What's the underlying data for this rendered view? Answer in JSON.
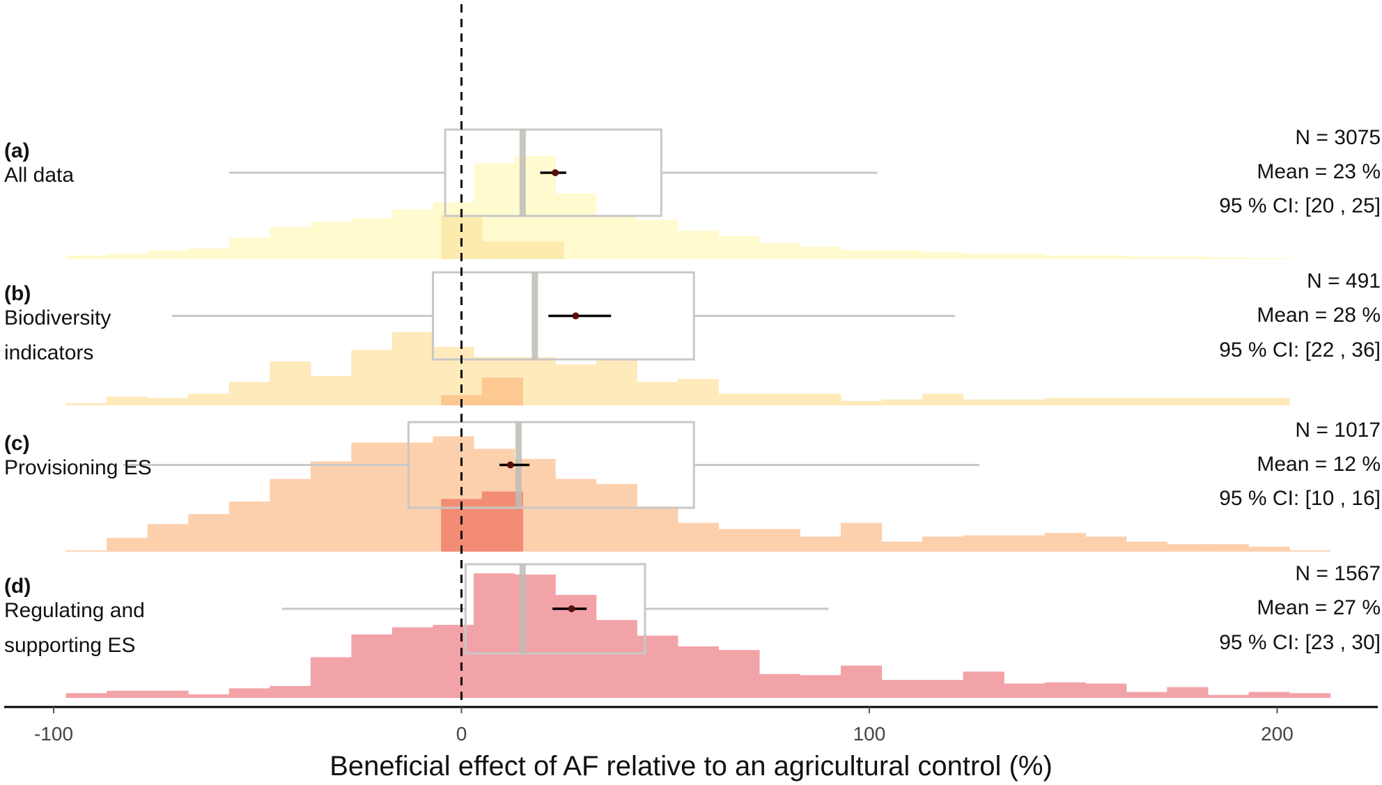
{
  "chart_data": {
    "type": "histogram",
    "title": "",
    "xlabel": "Beneficial effect of AF relative to an agricultural control (%)",
    "ylabel": "",
    "xlim": [
      -100,
      210
    ],
    "xticks": [
      -100,
      0,
      100,
      200
    ],
    "xtick_labels": [
      "-100",
      "0",
      "100",
      "200"
    ],
    "bin_width": 10,
    "reference_line": 0,
    "panels": [
      {
        "letter": "(a)",
        "label_lines": [
          "All data"
        ],
        "color": "#fffbcf",
        "inner_color": "#fde8a8",
        "hist_start": -97,
        "counts": [
          2,
          3,
          5,
          6,
          12,
          18,
          21,
          23,
          28,
          32,
          54,
          58,
          37,
          24,
          22,
          16,
          13,
          9,
          7,
          5,
          5,
          4,
          3,
          3,
          2,
          2,
          1.5,
          1.5,
          1,
          0.5
        ],
        "inner_bins": [
          [
            -5,
            5,
            25
          ],
          [
            5,
            25,
            10
          ]
        ],
        "n_text": "N = 3075",
        "mean_text": "Mean = 23 %",
        "ci_text": "95 % CI: [20 , 25]",
        "box": {
          "whisker_low": -57,
          "q1": -4,
          "median": 15,
          "q3": 49,
          "whisker_high": 102
        },
        "mean": 23,
        "ci": [
          20,
          25
        ]
      },
      {
        "letter": "(b)",
        "label_lines": [
          "Biodiversity",
          "indicators"
        ],
        "color": "#feeaba",
        "inner_color": "#fdc28a",
        "hist_start": -97,
        "counts": [
          1.5,
          6,
          5,
          8,
          16,
          30,
          20,
          38,
          50,
          40,
          33,
          33,
          28,
          31,
          16,
          18,
          8,
          8,
          8,
          3,
          4,
          8,
          4,
          4,
          5,
          5,
          5,
          5,
          5,
          5
        ],
        "inner_bins": [
          [
            -5,
            5,
            7
          ],
          [
            5,
            15,
            19
          ]
        ],
        "n_text": "N = 491",
        "mean_text": "Mean = 28 %",
        "ci_text": "95 % CI: [22 , 36]",
        "box": {
          "whisker_low": -71,
          "q1": -7,
          "median": 18,
          "q3": 57,
          "whisker_high": 121
        },
        "mean": 28,
        "ci": [
          22,
          36
        ]
      },
      {
        "letter": "(c)",
        "label_lines": [
          "Provisioning ES"
        ],
        "color": "#fdd0ad",
        "inner_color": "#f0806a",
        "hist_start": -97,
        "counts": [
          1,
          11,
          22,
          30,
          40,
          58,
          72,
          87,
          87,
          92,
          82,
          74,
          58,
          54,
          36,
          23,
          18,
          18,
          12,
          23,
          8,
          12,
          13,
          13,
          15,
          12,
          8,
          6,
          6,
          4,
          1
        ],
        "inner_bins": [
          [
            -5,
            5,
            42
          ],
          [
            5,
            15,
            48
          ]
        ],
        "n_text": "N = 1017",
        "mean_text": "Mean = 12 %",
        "ci_text": "95 % CI: [10 , 16]",
        "box": {
          "whisker_low": -83,
          "q1": -13,
          "median": 14,
          "q3": 57,
          "whisker_high": 127
        },
        "mean": 12,
        "ci": [
          10,
          16
        ]
      },
      {
        "letter": "(d)",
        "label_lines": [
          "Regulating and",
          "supporting ES"
        ],
        "color": "#f2a3a8",
        "inner_color": "#f2a3a8",
        "hist_start": -97,
        "counts": [
          4,
          6,
          6,
          3,
          8,
          10,
          34,
          53,
          59,
          61,
          104,
          103,
          86,
          65,
          52,
          43,
          40,
          20,
          19,
          27,
          15,
          15,
          22,
          12,
          13,
          12,
          5,
          9,
          2.5,
          5,
          4
        ],
        "inner_bins": [],
        "n_text": "N = 1567",
        "mean_text": "Mean = 27 %",
        "ci_text": "95 % CI: [23 , 30]",
        "box": {
          "whisker_low": -44,
          "q1": 1,
          "median": 15,
          "q3": 45,
          "whisker_high": 90
        },
        "mean": 27,
        "ci": [
          23,
          30
        ]
      }
    ]
  }
}
